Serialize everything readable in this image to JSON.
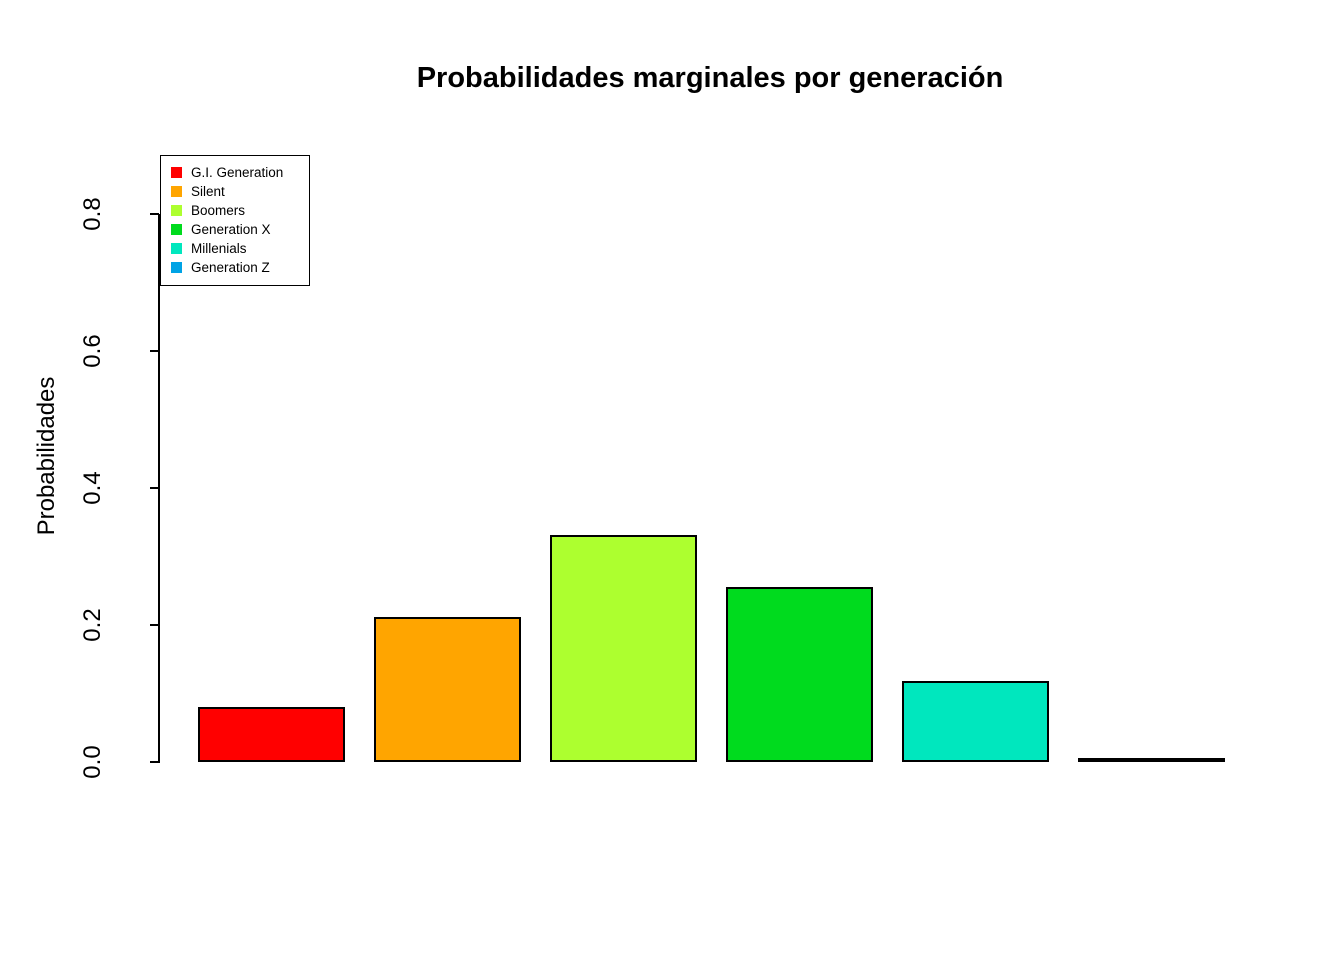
{
  "title": "Probabilidades marginales por generación",
  "ylabel": "Probabilidades",
  "chart_data": {
    "type": "bar",
    "title": "Probabilidades marginales por generación",
    "xlabel": "",
    "ylabel": "Probabilidades",
    "categories": [
      "G.I. Generation",
      "Silent",
      "Boomers",
      "Generation X",
      "Millenials",
      "Generation Z"
    ],
    "values": [
      0.08,
      0.212,
      0.332,
      0.255,
      0.118,
      0.004
    ],
    "colors": [
      "#FF0000",
      "#FFA500",
      "#ADFF2F",
      "#00DB1E",
      "#00E7BE",
      "#00A3E5"
    ],
    "ylim": [
      0,
      0.8
    ],
    "yticks": [
      "0.0",
      "0.2",
      "0.4",
      "0.6",
      "0.8"
    ],
    "grid": false,
    "legend_position": "top-left",
    "legend": {
      "items": [
        {
          "label": "G.I. Generation",
          "color": "#FF0000"
        },
        {
          "label": "Silent",
          "color": "#FFA500"
        },
        {
          "label": "Boomers",
          "color": "#ADFF2F"
        },
        {
          "label": "Generation X",
          "color": "#00DB1E"
        },
        {
          "label": "Millenials",
          "color": "#00E7BE"
        },
        {
          "label": "Generation Z",
          "color": "#00A3E5"
        }
      ]
    }
  }
}
